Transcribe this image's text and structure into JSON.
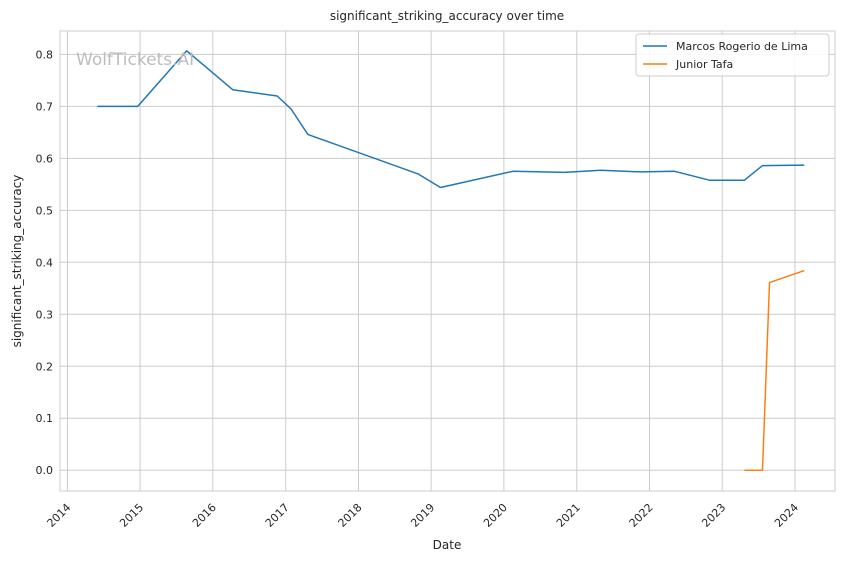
{
  "chart_data": {
    "type": "line",
    "title": "significant_striking_accuracy over time",
    "xlabel": "Date",
    "ylabel": "significant_striking_accuracy",
    "watermark": "WolfTickets.AI",
    "x_ticks": [
      "2014",
      "2015",
      "2016",
      "2017",
      "2018",
      "2019",
      "2020",
      "2021",
      "2022",
      "2023",
      "2024"
    ],
    "y_ticks": [
      "0.0",
      "0.1",
      "0.2",
      "0.3",
      "0.4",
      "0.5",
      "0.6",
      "0.7",
      "0.8"
    ],
    "xlim": [
      "2013-11-25",
      "2024-07-20"
    ],
    "ylim": [
      -0.04,
      0.845
    ],
    "grid": true,
    "legend_position": "top-right",
    "series": [
      {
        "name": "Marcos Rogerio de Lima",
        "color": "#1f77b4",
        "points": [
          [
            "2014-05-31",
            0.7
          ],
          [
            "2014-12-20",
            0.7
          ],
          [
            "2015-08-23",
            0.807
          ],
          [
            "2016-04-10",
            0.732
          ],
          [
            "2016-11-19",
            0.72
          ],
          [
            "2017-01-28",
            0.695
          ],
          [
            "2017-04-22",
            0.646
          ],
          [
            "2018-10-27",
            0.57
          ],
          [
            "2019-02-17",
            0.544
          ],
          [
            "2020-02-15",
            0.575
          ],
          [
            "2020-10-31",
            0.573
          ],
          [
            "2021-05-01",
            0.577
          ],
          [
            "2021-11-20",
            0.574
          ],
          [
            "2022-05-07",
            0.575
          ],
          [
            "2022-10-29",
            0.558
          ],
          [
            "2023-04-22",
            0.558
          ],
          [
            "2023-07-22",
            0.586
          ],
          [
            "2024-02-17",
            0.587
          ]
        ]
      },
      {
        "name": "Junior Tafa",
        "color": "#ff7f0e",
        "points": [
          [
            "2023-04-22",
            0.0
          ],
          [
            "2023-07-22",
            0.0
          ],
          [
            "2023-08-26",
            0.361
          ],
          [
            "2024-02-17",
            0.384
          ]
        ]
      }
    ]
  }
}
